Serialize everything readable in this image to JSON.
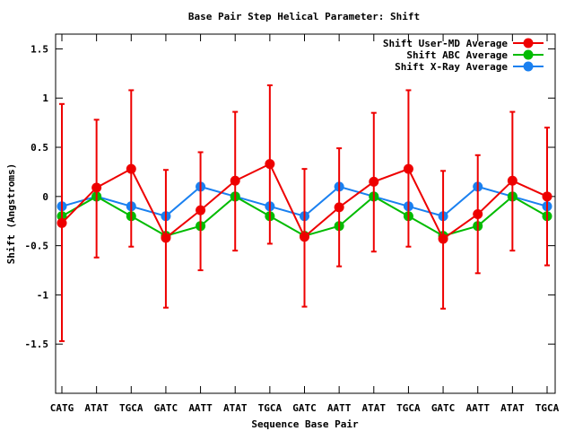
{
  "chart_data": {
    "type": "line",
    "title": "Base Pair Step Helical Parameter: Shift",
    "xlabel": "Sequence Base Pair",
    "ylabel": "Shift (Angstroms)",
    "categories": [
      "CATG",
      "ATAT",
      "TGCA",
      "GATC",
      "AATT",
      "ATAT",
      "TGCA",
      "GATC",
      "AATT",
      "ATAT",
      "TGCA",
      "GATC",
      "AATT",
      "ATAT",
      "TGCA"
    ],
    "ylim": [
      -2,
      1.65
    ],
    "yticks": [
      -1.5,
      -1,
      -0.5,
      0,
      0.5,
      1,
      1.5
    ],
    "ytick_labels": [
      "-1.5",
      "-1",
      "-0.5",
      "0",
      "0.5",
      "1",
      "1.5"
    ],
    "grid": false,
    "legend_position": "top-right",
    "series": [
      {
        "name": "Shift User-MD Average",
        "color": "#ee0000",
        "values": [
          -0.27,
          0.09,
          0.28,
          -0.42,
          -0.14,
          0.16,
          0.33,
          -0.41,
          -0.11,
          0.15,
          0.28,
          -0.43,
          -0.18,
          0.16,
          0.0
        ],
        "error_low": [
          -1.47,
          -0.62,
          -0.51,
          -1.13,
          -0.75,
          -0.55,
          -0.48,
          -1.12,
          -0.71,
          -0.56,
          -0.51,
          -1.14,
          -0.78,
          -0.55,
          -0.7
        ],
        "error_high": [
          0.94,
          0.78,
          1.08,
          0.27,
          0.45,
          0.86,
          1.13,
          0.28,
          0.49,
          0.85,
          1.08,
          0.26,
          0.42,
          0.86,
          0.7
        ]
      },
      {
        "name": "Shift ABC Average",
        "color": "#00bb00",
        "values": [
          -0.2,
          0.0,
          -0.2,
          -0.4,
          -0.3,
          0.0,
          -0.2,
          -0.4,
          -0.3,
          0.0,
          -0.2,
          -0.4,
          -0.3,
          0.0,
          -0.2
        ]
      },
      {
        "name": "Shift X-Ray Average",
        "color": "#1a80f0",
        "values": [
          -0.1,
          0.0,
          -0.1,
          -0.2,
          0.1,
          0.0,
          -0.1,
          -0.2,
          0.1,
          0.0,
          -0.1,
          -0.2,
          0.1,
          0.0,
          -0.1
        ]
      }
    ]
  }
}
